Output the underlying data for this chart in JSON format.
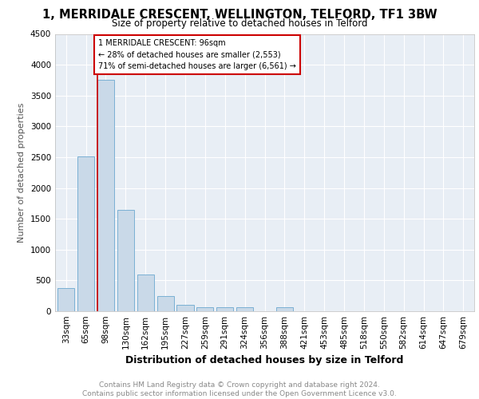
{
  "title1": "1, MERRIDALE CRESCENT, WELLINGTON, TELFORD, TF1 3BW",
  "title2": "Size of property relative to detached houses in Telford",
  "xlabel": "Distribution of detached houses by size in Telford",
  "ylabel": "Number of detached properties",
  "categories": [
    "33sqm",
    "65sqm",
    "98sqm",
    "130sqm",
    "162sqm",
    "195sqm",
    "227sqm",
    "259sqm",
    "291sqm",
    "324sqm",
    "356sqm",
    "388sqm",
    "421sqm",
    "453sqm",
    "485sqm",
    "518sqm",
    "550sqm",
    "582sqm",
    "614sqm",
    "647sqm",
    "679sqm"
  ],
  "values": [
    375,
    2510,
    3750,
    1640,
    600,
    240,
    110,
    65,
    65,
    65,
    0,
    65,
    0,
    0,
    0,
    0,
    0,
    0,
    0,
    0,
    0
  ],
  "bar_color": "#c9d9e8",
  "bar_edge_color": "#7ab0d4",
  "annotation_text": "1 MERRIDALE CRESCENT: 96sqm\n← 28% of detached houses are smaller (2,553)\n71% of semi-detached houses are larger (6,561) →",
  "annotation_box_color": "#cc0000",
  "ylim": [
    0,
    4500
  ],
  "yticks": [
    0,
    500,
    1000,
    1500,
    2000,
    2500,
    3000,
    3500,
    4000,
    4500
  ],
  "footer_text": "Contains HM Land Registry data © Crown copyright and database right 2024.\nContains public sector information licensed under the Open Government Licence v3.0.",
  "plot_bg_color": "#e8eef5",
  "grid_color": "#ffffff",
  "title1_fontsize": 10.5,
  "title2_fontsize": 8.5,
  "ylabel_fontsize": 8,
  "xlabel_fontsize": 9,
  "tick_fontsize": 7.5,
  "footer_fontsize": 6.5
}
